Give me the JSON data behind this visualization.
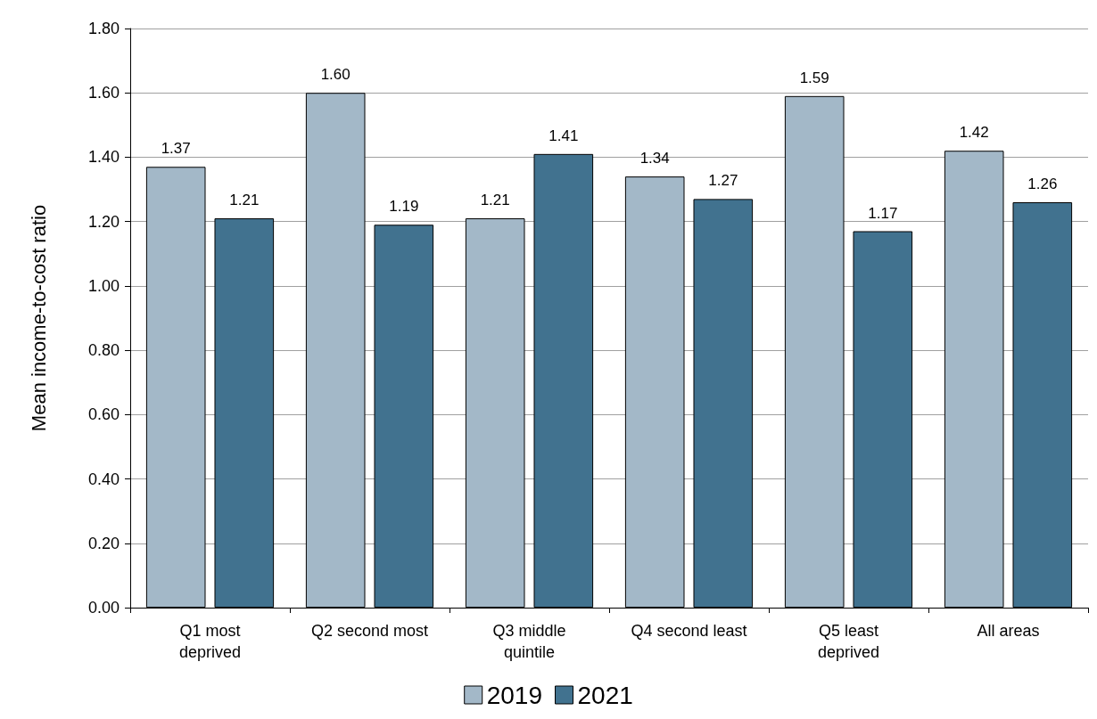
{
  "chart_data": {
    "type": "bar",
    "ylabel": "Mean income-to-cost ratio",
    "categories": [
      "Q1 most\ndeprived",
      "Q2 second most",
      "Q3 middle\nquintile",
      "Q4 second least",
      "Q5 least\ndeprived",
      "All areas"
    ],
    "series": [
      {
        "name": "2019",
        "color": "#a3b8c8",
        "values": [
          1.37,
          1.6,
          1.21,
          1.34,
          1.59,
          1.42
        ],
        "value_labels": [
          "1.37",
          "1.60",
          "1.21",
          "1.34",
          "1.59",
          "1.42"
        ]
      },
      {
        "name": "2021",
        "color": "#41728f",
        "values": [
          1.21,
          1.19,
          1.41,
          1.27,
          1.17,
          1.26
        ],
        "value_labels": [
          "1.21",
          "1.19",
          "1.41",
          "1.27",
          "1.17",
          "1.26"
        ]
      }
    ],
    "ylim": [
      0,
      1.8
    ],
    "yticks": [
      {
        "value": 0,
        "label": "0.00"
      },
      {
        "value": 0.2,
        "label": "0.20"
      },
      {
        "value": 0.4,
        "label": "0.40"
      },
      {
        "value": 0.6,
        "label": "0.60"
      },
      {
        "value": 0.8,
        "label": "0.80"
      },
      {
        "value": 1,
        "label": "1.00"
      },
      {
        "value": 1.2,
        "label": "1.20"
      },
      {
        "value": 1.4,
        "label": "1.40"
      },
      {
        "value": 1.6,
        "label": "1.60"
      },
      {
        "value": 1.8,
        "label": "1.80"
      }
    ],
    "grid": "y",
    "legend": "bottom"
  }
}
